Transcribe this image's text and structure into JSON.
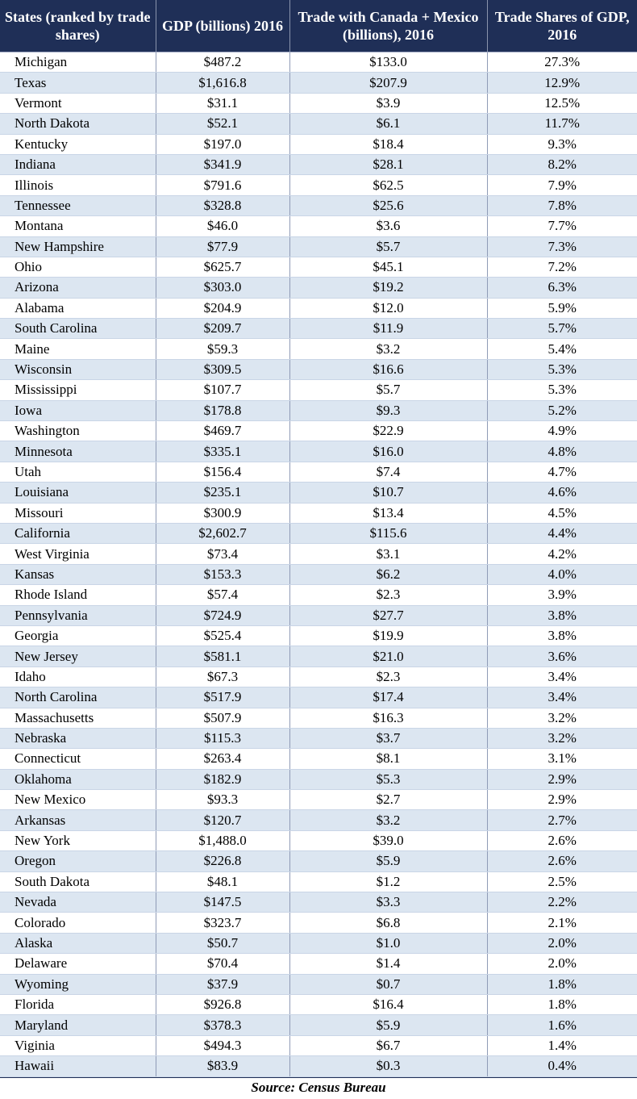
{
  "table": {
    "headers": [
      "States (ranked by trade shares)",
      "GDP (billions) 2016",
      "Trade with Canada + Mexico (billions), 2016",
      "Trade Shares of GDP, 2016"
    ],
    "rows": [
      [
        "Michigan",
        "$487.2",
        "$133.0",
        "27.3%"
      ],
      [
        "Texas",
        "$1,616.8",
        "$207.9",
        "12.9%"
      ],
      [
        "Vermont",
        "$31.1",
        "$3.9",
        "12.5%"
      ],
      [
        "North Dakota",
        "$52.1",
        "$6.1",
        "11.7%"
      ],
      [
        "Kentucky",
        "$197.0",
        "$18.4",
        "9.3%"
      ],
      [
        "Indiana",
        "$341.9",
        "$28.1",
        "8.2%"
      ],
      [
        "Illinois",
        "$791.6",
        "$62.5",
        "7.9%"
      ],
      [
        "Tennessee",
        "$328.8",
        "$25.6",
        "7.8%"
      ],
      [
        "Montana",
        "$46.0",
        "$3.6",
        "7.7%"
      ],
      [
        "New Hampshire",
        "$77.9",
        "$5.7",
        "7.3%"
      ],
      [
        "Ohio",
        "$625.7",
        "$45.1",
        "7.2%"
      ],
      [
        "Arizona",
        "$303.0",
        "$19.2",
        "6.3%"
      ],
      [
        "Alabama",
        "$204.9",
        "$12.0",
        "5.9%"
      ],
      [
        "South Carolina",
        "$209.7",
        "$11.9",
        "5.7%"
      ],
      [
        "Maine",
        "$59.3",
        "$3.2",
        "5.4%"
      ],
      [
        "Wisconsin",
        "$309.5",
        "$16.6",
        "5.3%"
      ],
      [
        "Mississippi",
        "$107.7",
        "$5.7",
        "5.3%"
      ],
      [
        "Iowa",
        "$178.8",
        "$9.3",
        "5.2%"
      ],
      [
        "Washington",
        "$469.7",
        "$22.9",
        "4.9%"
      ],
      [
        "Minnesota",
        "$335.1",
        "$16.0",
        "4.8%"
      ],
      [
        "Utah",
        "$156.4",
        "$7.4",
        "4.7%"
      ],
      [
        "Louisiana",
        "$235.1",
        "$10.7",
        "4.6%"
      ],
      [
        "Missouri",
        "$300.9",
        "$13.4",
        "4.5%"
      ],
      [
        "California",
        "$2,602.7",
        "$115.6",
        "4.4%"
      ],
      [
        "West Virginia",
        "$73.4",
        "$3.1",
        "4.2%"
      ],
      [
        "Kansas",
        "$153.3",
        "$6.2",
        "4.0%"
      ],
      [
        "Rhode Island",
        "$57.4",
        "$2.3",
        "3.9%"
      ],
      [
        "Pennsylvania",
        "$724.9",
        "$27.7",
        "3.8%"
      ],
      [
        "Georgia",
        "$525.4",
        "$19.9",
        "3.8%"
      ],
      [
        "New Jersey",
        "$581.1",
        "$21.0",
        "3.6%"
      ],
      [
        "Idaho",
        "$67.3",
        "$2.3",
        "3.4%"
      ],
      [
        "North Carolina",
        "$517.9",
        "$17.4",
        "3.4%"
      ],
      [
        "Massachusetts",
        "$507.9",
        "$16.3",
        "3.2%"
      ],
      [
        "Nebraska",
        "$115.3",
        "$3.7",
        "3.2%"
      ],
      [
        "Connecticut",
        "$263.4",
        "$8.1",
        "3.1%"
      ],
      [
        "Oklahoma",
        "$182.9",
        "$5.3",
        "2.9%"
      ],
      [
        "New Mexico",
        "$93.3",
        "$2.7",
        "2.9%"
      ],
      [
        "Arkansas",
        "$120.7",
        "$3.2",
        "2.7%"
      ],
      [
        "New York",
        "$1,488.0",
        "$39.0",
        "2.6%"
      ],
      [
        "Oregon",
        "$226.8",
        "$5.9",
        "2.6%"
      ],
      [
        "South Dakota",
        "$48.1",
        "$1.2",
        "2.5%"
      ],
      [
        "Nevada",
        "$147.5",
        "$3.3",
        "2.2%"
      ],
      [
        "Colorado",
        "$323.7",
        "$6.8",
        "2.1%"
      ],
      [
        "Alaska",
        "$50.7",
        "$1.0",
        "2.0%"
      ],
      [
        "Delaware",
        "$70.4",
        "$1.4",
        "2.0%"
      ],
      [
        "Wyoming",
        "$37.9",
        "$0.7",
        "1.8%"
      ],
      [
        "Florida",
        "$926.8",
        "$16.4",
        "1.8%"
      ],
      [
        "Maryland",
        "$378.3",
        "$5.9",
        "1.6%"
      ],
      [
        "Viginia",
        "$494.3",
        "$6.7",
        "1.4%"
      ],
      [
        "Hawaii",
        "$83.9",
        "$0.3",
        "0.4%"
      ]
    ]
  },
  "source": "Source: Census Bureau",
  "colors": {
    "header_bg": "#1f2f57",
    "header_text": "#ffffff",
    "stripe": "#dce6f1"
  }
}
